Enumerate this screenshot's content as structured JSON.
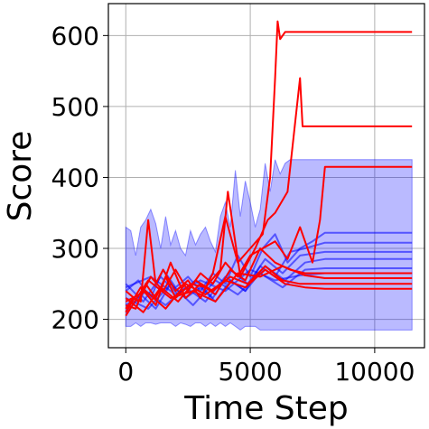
{
  "chart_data": {
    "type": "line",
    "title": "",
    "xlabel": "Time Step",
    "ylabel": "Score",
    "xlim": [
      -700,
      12000
    ],
    "ylim": [
      160,
      645
    ],
    "xticks": [
      0,
      5000,
      10000
    ],
    "xtick_labels": [
      "0",
      "5000",
      "10000"
    ],
    "yticks": [
      200,
      300,
      400,
      500,
      600
    ],
    "ytick_labels": [
      "200",
      "300",
      "400",
      "500",
      "600"
    ],
    "grid": true,
    "legend": "none",
    "colors": {
      "band": "#0000ff",
      "blue": "#0000ff",
      "red": "#ff0000",
      "grid": "#b0b0b0"
    },
    "band": {
      "x": [
        0,
        200,
        400,
        600,
        800,
        1000,
        1200,
        1400,
        1600,
        1800,
        2000,
        2200,
        2400,
        2600,
        2800,
        3000,
        3200,
        3400,
        3600,
        3800,
        4000,
        4200,
        4400,
        4600,
        4800,
        5000,
        5200,
        5400,
        5600,
        5800,
        6000,
        6200,
        6400,
        6600,
        6800,
        7000,
        7500,
        11500
      ],
      "upper": [
        330,
        325,
        290,
        330,
        340,
        355,
        335,
        300,
        345,
        305,
        325,
        300,
        290,
        325,
        305,
        320,
        330,
        310,
        295,
        345,
        365,
        330,
        410,
        345,
        395,
        365,
        330,
        355,
        420,
        380,
        425,
        405,
        420,
        425,
        425,
        425,
        425,
        425
      ],
      "lower": [
        190,
        190,
        195,
        190,
        195,
        195,
        193,
        195,
        195,
        195,
        190,
        195,
        193,
        190,
        195,
        195,
        190,
        195,
        190,
        195,
        190,
        195,
        190,
        185,
        190,
        190,
        190,
        185,
        185,
        185,
        185,
        185,
        185,
        185,
        185,
        185,
        185,
        185
      ]
    },
    "series": [
      {
        "color": "red",
        "x": [
          0,
          300,
          600,
          900,
          1200,
          1500,
          2000,
          2500,
          3000,
          3500,
          4000,
          4500,
          5000,
          5500,
          5800,
          6000,
          6100,
          6200,
          6400,
          7000,
          8000,
          11500
        ],
        "values": [
          215,
          230,
          225,
          340,
          250,
          270,
          240,
          255,
          230,
          265,
          345,
          280,
          300,
          320,
          400,
          540,
          620,
          595,
          605,
          605,
          605,
          605
        ]
      },
      {
        "color": "red",
        "x": [
          0,
          400,
          800,
          1200,
          1600,
          2000,
          2600,
          3200,
          3800,
          4100,
          4600,
          5200,
          5700,
          6000,
          6500,
          7000,
          7100,
          8000,
          11500
        ],
        "values": [
          220,
          215,
          250,
          230,
          260,
          230,
          250,
          245,
          270,
          380,
          260,
          300,
          340,
          350,
          380,
          540,
          472,
          472,
          472
        ]
      },
      {
        "color": "red",
        "x": [
          0,
          500,
          1000,
          1500,
          2000,
          2500,
          3000,
          3500,
          4000,
          4500,
          5000,
          5500,
          6000,
          6500,
          7000,
          7500,
          7800,
          8000,
          11500
        ],
        "values": [
          240,
          225,
          260,
          240,
          270,
          240,
          265,
          250,
          280,
          260,
          290,
          300,
          310,
          285,
          330,
          280,
          340,
          415,
          415
        ]
      },
      {
        "color": "red",
        "x": [
          0,
          600,
          1200,
          1800,
          2400,
          3000,
          3600,
          4200,
          4800,
          5400,
          6000,
          6600,
          7200,
          8000,
          11500
        ],
        "values": [
          210,
          245,
          220,
          280,
          230,
          250,
          235,
          270,
          255,
          300,
          280,
          270,
          265,
          265,
          265
        ]
      },
      {
        "color": "red",
        "x": [
          0,
          700,
          1400,
          2100,
          2800,
          3500,
          4200,
          4900,
          5600,
          6300,
          7000,
          8000,
          11500
        ],
        "values": [
          230,
          210,
          245,
          225,
          255,
          240,
          260,
          250,
          275,
          255,
          250,
          250,
          250
        ]
      },
      {
        "color": "red",
        "x": [
          0,
          800,
          1600,
          2400,
          3200,
          4000,
          4800,
          5600,
          6400,
          7200,
          8000,
          11500
        ],
        "values": [
          225,
          240,
          215,
          250,
          235,
          255,
          245,
          270,
          250,
          245,
          243,
          243
        ]
      },
      {
        "color": "red",
        "x": [
          0,
          900,
          1800,
          2700,
          3600,
          4500,
          5400,
          6300,
          7200,
          8000,
          11500
        ],
        "values": [
          205,
          255,
          230,
          240,
          225,
          265,
          260,
          275,
          262,
          258,
          258
        ]
      },
      {
        "color": "blue",
        "x": [
          0,
          500,
          1000,
          1500,
          2000,
          2500,
          3000,
          3500,
          4000,
          4500,
          5000,
          5500,
          6000,
          6500,
          7000,
          7500,
          8000,
          11500
        ],
        "values": [
          240,
          255,
          230,
          270,
          245,
          260,
          240,
          265,
          250,
          290,
          260,
          300,
          320,
          280,
          300,
          310,
          322,
          322
        ]
      },
      {
        "color": "blue",
        "x": [
          0,
          600,
          1200,
          1800,
          2400,
          3000,
          3600,
          4200,
          4800,
          5400,
          6000,
          6600,
          7200,
          8000,
          11500
        ],
        "values": [
          220,
          235,
          215,
          250,
          230,
          245,
          225,
          255,
          240,
          275,
          260,
          295,
          300,
          308,
          308
        ]
      },
      {
        "color": "blue",
        "x": [
          0,
          700,
          1400,
          2100,
          2800,
          3500,
          4200,
          4900,
          5600,
          6300,
          7000,
          8000,
          11500
        ],
        "values": [
          250,
          225,
          260,
          235,
          255,
          230,
          270,
          250,
          285,
          265,
          290,
          295,
          295
        ]
      },
      {
        "color": "blue",
        "x": [
          0,
          800,
          1600,
          2400,
          3200,
          4000,
          4800,
          5600,
          6400,
          7200,
          8000,
          11500
        ],
        "values": [
          210,
          240,
          220,
          245,
          225,
          260,
          240,
          275,
          255,
          280,
          285,
          285
        ]
      },
      {
        "color": "blue",
        "x": [
          0,
          900,
          1800,
          2700,
          3600,
          4500,
          5400,
          6300,
          7200,
          8000,
          11500
        ],
        "values": [
          230,
          215,
          250,
          220,
          255,
          235,
          265,
          245,
          270,
          272,
          272
        ]
      },
      {
        "color": "blue",
        "x": [
          0,
          1000,
          2000,
          3000,
          4000,
          5000,
          6000,
          7000,
          8000,
          11500
        ],
        "values": [
          245,
          260,
          235,
          255,
          240,
          270,
          255,
          262,
          265,
          265
        ]
      }
    ]
  }
}
